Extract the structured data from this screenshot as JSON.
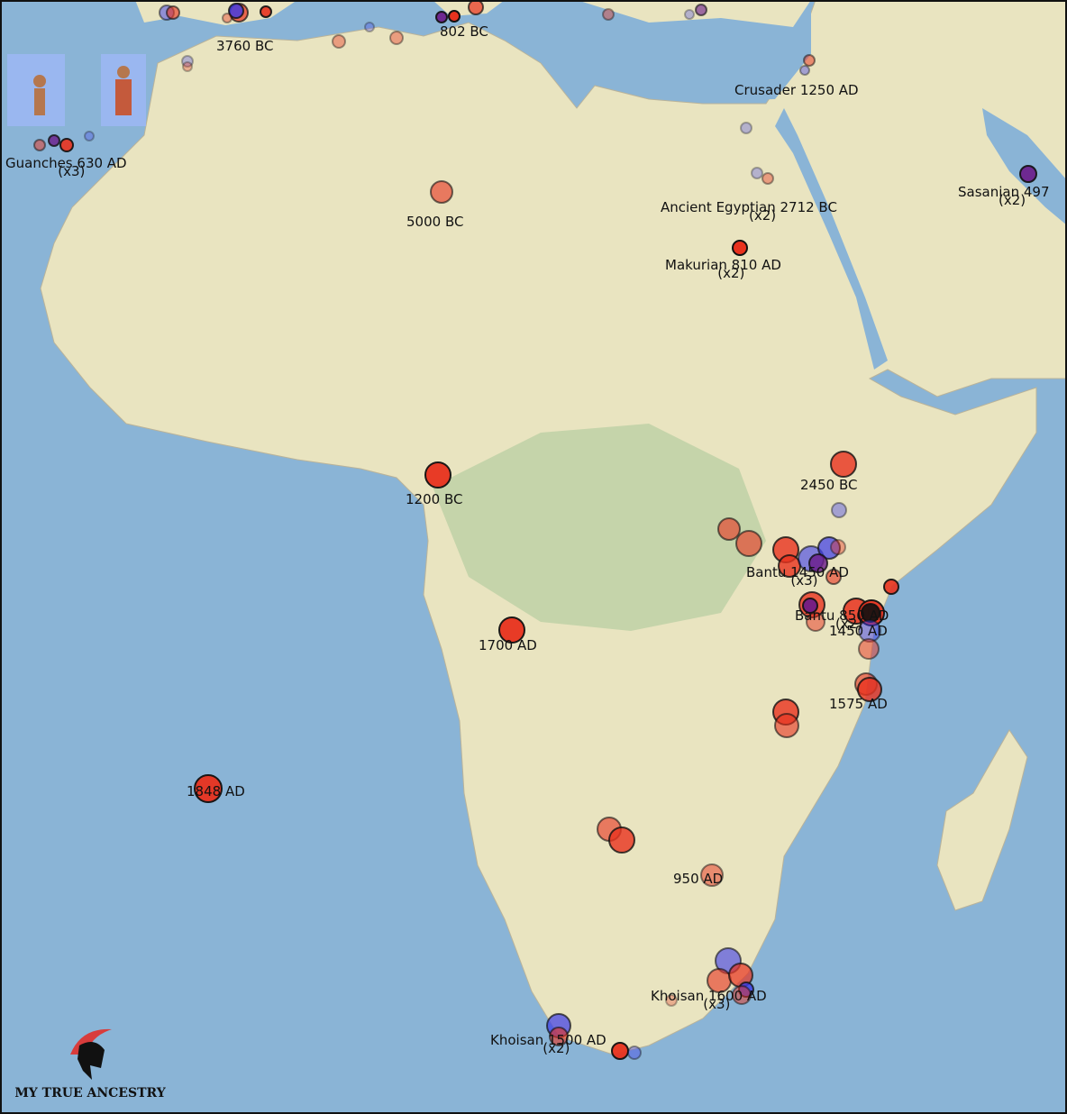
{
  "map": {
    "labels": [
      {
        "text": "3760 BC"
      },
      {
        "text": "802 BC"
      },
      {
        "text": "Crusader 1250 AD"
      },
      {
        "text": "Guanches 630 AD",
        "count": "(x3)"
      },
      {
        "text": "Sasanian 497",
        "count": "(x2)"
      },
      {
        "text": "5000 BC"
      },
      {
        "text": "Ancient Egyptian 2712 BC",
        "count": "(x2)"
      },
      {
        "text": "Makurian 810 AD",
        "count": "(x2)"
      },
      {
        "text": "2450 BC"
      },
      {
        "text": "1200 BC"
      },
      {
        "text": "Bantu 1450 AD",
        "count": "(x3)"
      },
      {
        "text": "Bantu 850 AD",
        "count": "(x2)"
      },
      {
        "text": "1450 AD"
      },
      {
        "text": "1700 AD"
      },
      {
        "text": "1575 AD"
      },
      {
        "text": "1848 AD"
      },
      {
        "text": "950 AD"
      },
      {
        "text": "Khoisan 1600 AD",
        "count": "(x3)"
      },
      {
        "text": "Khoisan 1500 AD",
        "count": "(x2)"
      }
    ]
  },
  "logo": {
    "text": "MY TRUE ANCESTRY"
  }
}
